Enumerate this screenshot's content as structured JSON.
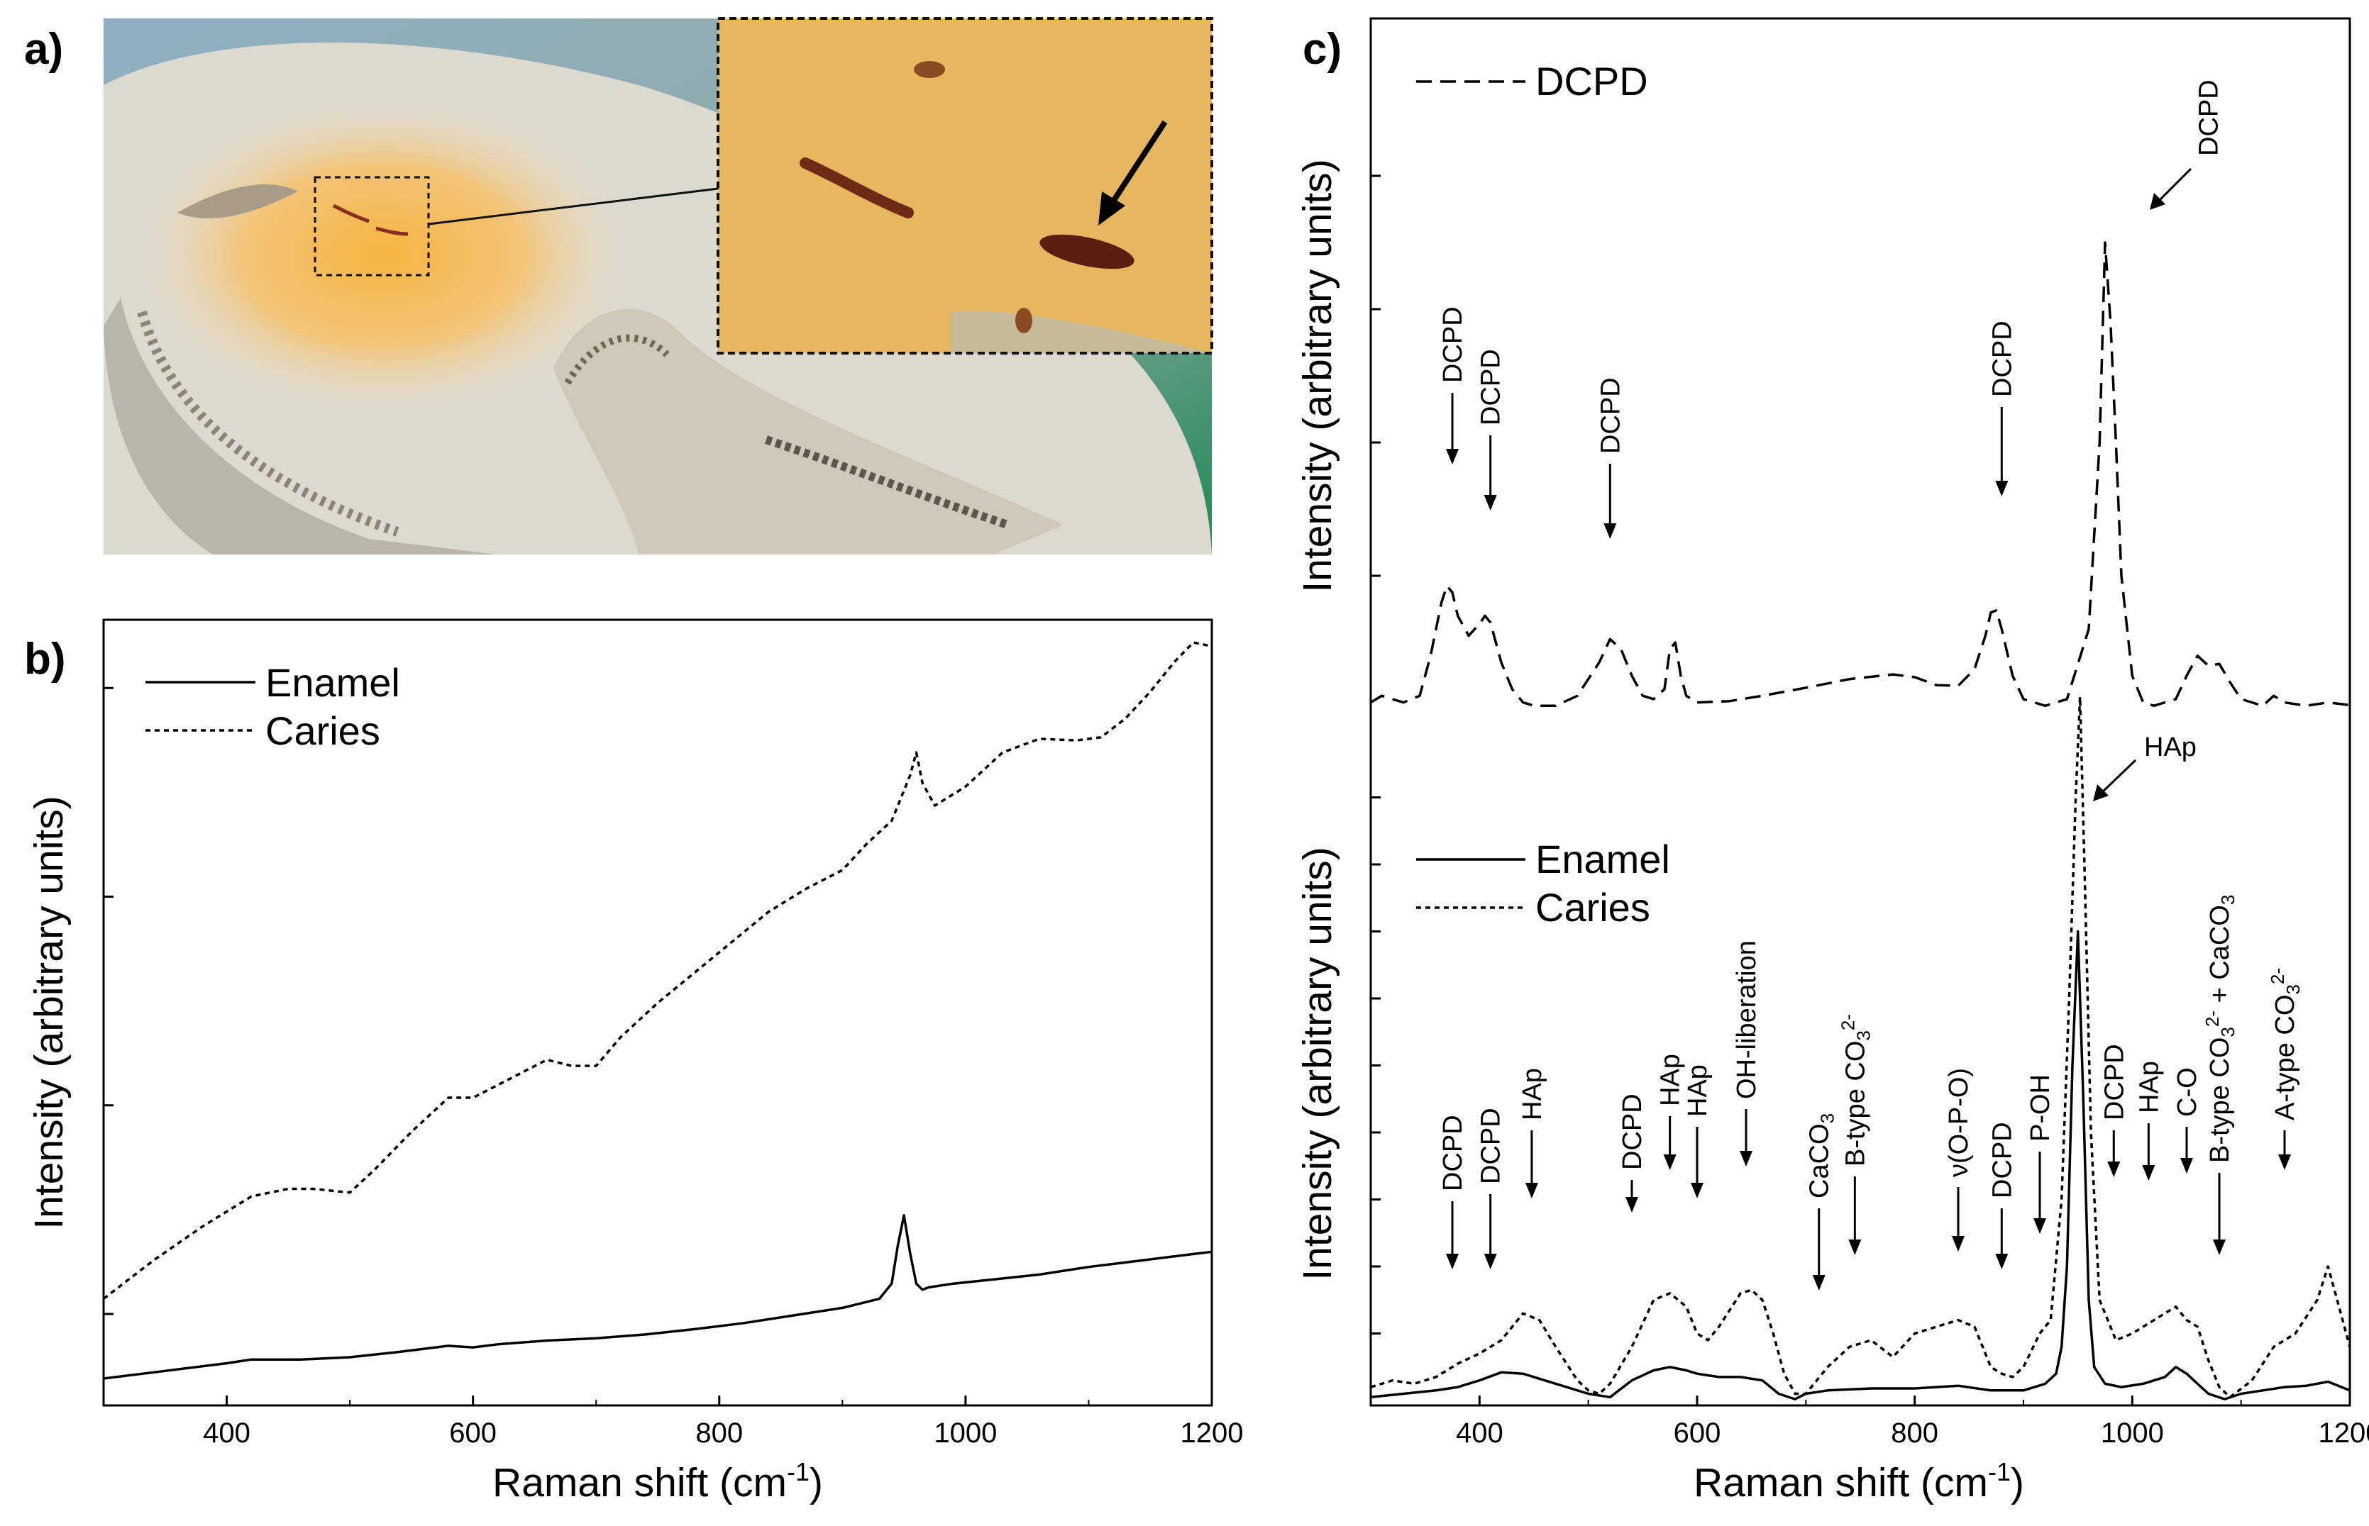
{
  "figure": {
    "panel_labels": [
      "a)",
      "b)",
      "c)"
    ]
  },
  "photo": {
    "description_icon": "tooth-section-photo",
    "colors": {
      "enamel": "#d8d6cc",
      "caries": "#f2b44a",
      "dentin": "#c9c3b4",
      "inset": "#e6b25a",
      "background": "#7fa0b0"
    }
  },
  "chart_data": [
    {
      "type": "line",
      "panel": "b)",
      "xlabel": "Raman shift (cm",
      "xlabel_sup": "-1",
      "xlabel_close": ")",
      "ylabel": "Intensity (arbitrary units)",
      "xlim": [
        300,
        1200
      ],
      "ylim": [
        0,
        100
      ],
      "xticks": [
        400,
        600,
        800,
        1000,
        1200
      ],
      "yticks_values": [
        10,
        37.5,
        65,
        92.5
      ],
      "legend": [
        {
          "label": "Enamel",
          "style": "solid"
        },
        {
          "label": "Caries",
          "style": "dotted"
        }
      ],
      "series": [
        {
          "name": "Enamel",
          "style": "solid",
          "x": [
            300,
            350,
            400,
            420,
            460,
            500,
            540,
            580,
            600,
            620,
            660,
            700,
            740,
            780,
            820,
            860,
            900,
            930,
            940,
            945,
            950,
            955,
            960,
            965,
            970,
            990,
            1020,
            1060,
            1100,
            1140,
            1180,
            1200
          ],
          "y": [
            1.5,
            2.5,
            3.5,
            4,
            4,
            4.3,
            5,
            5.8,
            5.6,
            6,
            6.5,
            6.8,
            7.3,
            8,
            8.8,
            9.8,
            10.8,
            12,
            14,
            19,
            23,
            18,
            14,
            13.2,
            13.5,
            14,
            14.5,
            15.2,
            16.2,
            17,
            17.8,
            18.2
          ]
        },
        {
          "name": "Caries",
          "style": "dotted",
          "x": [
            300,
            340,
            380,
            420,
            450,
            470,
            500,
            520,
            550,
            580,
            600,
            630,
            660,
            680,
            700,
            720,
            750,
            780,
            810,
            840,
            870,
            900,
            920,
            940,
            955,
            960,
            965,
            975,
            985,
            1000,
            1030,
            1060,
            1090,
            1110,
            1130,
            1150,
            1170,
            1185,
            1200
          ],
          "y": [
            12,
            17,
            21.5,
            25.5,
            26.5,
            26.5,
            26,
            29,
            34,
            38.5,
            38.5,
            41,
            43.5,
            42.7,
            42.7,
            46.5,
            51,
            55,
            59,
            63,
            66,
            68.5,
            72,
            75,
            81,
            84,
            80,
            77,
            78,
            79.5,
            84,
            85.8,
            85.6,
            86,
            88.5,
            92,
            96,
            98.5,
            98
          ]
        }
      ]
    },
    {
      "type": "line",
      "panel": "c) top",
      "ylabel": "Intensity (arbitrary units)",
      "xlim": [
        300,
        1200
      ],
      "ylim": [
        0,
        100
      ],
      "yticks_values": [
        20,
        40,
        60,
        80
      ],
      "legend": [
        {
          "label": "DCPD",
          "style": "dashed"
        }
      ],
      "annotations": [
        {
          "label": "DCPD",
          "x": 375
        },
        {
          "label": "DCPD",
          "x": 410
        },
        {
          "label": "DCPD",
          "x": 520
        },
        {
          "label": "DCPD",
          "x": 880
        },
        {
          "label": "DCPD",
          "x": 1000
        }
      ],
      "series": [
        {
          "name": "DCPD",
          "style": "dashed",
          "x": [
            300,
            310,
            320,
            330,
            345,
            355,
            365,
            370,
            375,
            380,
            390,
            400,
            405,
            410,
            420,
            430,
            440,
            450,
            470,
            490,
            510,
            520,
            530,
            540,
            550,
            560,
            570,
            575,
            580,
            585,
            590,
            600,
            630,
            660,
            700,
            740,
            780,
            800,
            820,
            840,
            855,
            865,
            870,
            875,
            880,
            890,
            900,
            920,
            940,
            960,
            970,
            975,
            980,
            985,
            990,
            1000,
            1010,
            1020,
            1040,
            1050,
            1060,
            1070,
            1080,
            1090,
            1100,
            1120,
            1130,
            1140,
            1160,
            1180,
            1200
          ],
          "y": [
            1,
            2,
            1.5,
            1,
            2,
            8,
            16,
            18.5,
            17.5,
            14,
            11,
            12.8,
            14,
            13,
            7,
            3,
            1,
            0.5,
            0.5,
            2,
            7,
            10.5,
            9,
            5,
            2,
            1.5,
            3,
            9,
            10,
            5,
            2,
            1,
            1.2,
            2,
            3.2,
            4.5,
            5.2,
            4.8,
            3.6,
            3.5,
            6,
            11,
            14.5,
            14.8,
            12,
            5,
            1.5,
            0.5,
            1.5,
            12,
            40,
            70,
            58,
            40,
            20,
            5,
            1,
            0.5,
            1.5,
            5,
            8,
            6.5,
            6.8,
            4,
            1.5,
            0.5,
            2,
            1,
            0.5,
            1,
            0.6
          ]
        }
      ]
    },
    {
      "type": "line",
      "panel": "c) bottom",
      "xlabel": "Raman shift (cm",
      "xlabel_sup": "-1",
      "xlabel_close": ")",
      "ylabel": "Intensity (arbitrary units)",
      "xlim": [
        300,
        1200
      ],
      "ylim": [
        0,
        100
      ],
      "xticks": [
        400,
        600,
        800,
        1000,
        1200
      ],
      "yticks_values": [
        10,
        20,
        30,
        40,
        50,
        60,
        70,
        80,
        90
      ],
      "legend": [
        {
          "label": "Enamel",
          "style": "solid"
        },
        {
          "label": "Caries",
          "style": "dotted"
        }
      ],
      "annotations": [
        {
          "label": "DCPD",
          "x": 375,
          "sub": ""
        },
        {
          "label": "DCPD",
          "x": 410,
          "sub": ""
        },
        {
          "label": "HAp",
          "x": 448,
          "sub": ""
        },
        {
          "label": "DCPD",
          "x": 540,
          "sub": ""
        },
        {
          "label": "HAp",
          "x": 575,
          "sub": ""
        },
        {
          "label": "HAp",
          "x": 600,
          "sub": ""
        },
        {
          "label": "OH-liberation",
          "x": 645,
          "sub": ""
        },
        {
          "label": "CaCO",
          "x": 712,
          "sub": "3"
        },
        {
          "label": "B-type CO",
          "x": 745,
          "sub": "3",
          "sup": "2-"
        },
        {
          "label": "ν(O-P-O)",
          "x": 840,
          "sub": ""
        },
        {
          "label": "DCPD",
          "x": 880,
          "sub": ""
        },
        {
          "label": "P-OH",
          "x": 915,
          "sub": ""
        },
        {
          "label": "DCPD",
          "x": 983,
          "sub": ""
        },
        {
          "label": "HAp",
          "x": 1015,
          "sub": ""
        },
        {
          "label": "C-O",
          "x": 1050,
          "sub": ""
        },
        {
          "label": "B-type CO",
          "x": 1080,
          "sub": "3",
          "sup": "2-",
          "extra": " + CaCO",
          "extra_sub": "3"
        },
        {
          "label": "A-type CO",
          "x": 1140,
          "sub": "3",
          "sup": "2-"
        },
        {
          "label": "HAp",
          "x": 960,
          "sub": ""
        }
      ],
      "series": [
        {
          "name": "Enamel",
          "style": "solid",
          "x": [
            300,
            330,
            360,
            380,
            400,
            420,
            440,
            460,
            480,
            500,
            520,
            540,
            560,
            575,
            590,
            600,
            620,
            640,
            660,
            675,
            690,
            700,
            720,
            760,
            800,
            840,
            870,
            900,
            920,
            930,
            935,
            940,
            945,
            950,
            955,
            960,
            965,
            975,
            990,
            1010,
            1030,
            1040,
            1050,
            1060,
            1070,
            1085,
            1100,
            1120,
            1140,
            1160,
            1180,
            1200
          ],
          "y": [
            0.5,
            1,
            1.5,
            2,
            3,
            4.2,
            4,
            3,
            2,
            1,
            0.5,
            3,
            4.5,
            5,
            4.5,
            4,
            3.5,
            3.5,
            3,
            1,
            0.2,
            1,
            1.5,
            1.8,
            1.8,
            2.2,
            1.5,
            1.5,
            2.5,
            4,
            8,
            20,
            50,
            70,
            45,
            15,
            5,
            2.5,
            2,
            2.5,
            3.5,
            5,
            4,
            2.5,
            1,
            0.2,
            1,
            1.5,
            2,
            2.2,
            2.8,
            1.5
          ]
        },
        {
          "name": "Caries",
          "style": "dotted",
          "x": [
            300,
            320,
            340,
            360,
            380,
            400,
            420,
            440,
            455,
            470,
            490,
            500,
            510,
            520,
            540,
            560,
            575,
            590,
            600,
            610,
            620,
            640,
            650,
            660,
            670,
            680,
            690,
            700,
            720,
            740,
            760,
            780,
            800,
            820,
            840,
            855,
            870,
            880,
            890,
            900,
            915,
            925,
            935,
            942,
            948,
            952,
            956,
            962,
            970,
            985,
            1000,
            1020,
            1040,
            1050,
            1060,
            1070,
            1080,
            1090,
            1110,
            1130,
            1150,
            1170,
            1180,
            1190,
            1200
          ],
          "y": [
            2,
            3,
            2.5,
            3.5,
            5.5,
            7,
            9,
            13,
            12,
            8,
            3,
            1.5,
            1,
            2.5,
            8,
            15,
            16,
            14,
            10,
            9,
            11,
            16,
            16.5,
            15,
            10,
            4,
            1,
            1,
            5,
            8,
            9,
            6.5,
            10,
            11,
            12,
            11,
            5,
            4,
            3.5,
            5,
            10,
            12,
            30,
            60,
            90,
            105,
            80,
            40,
            15,
            9,
            10,
            12,
            14,
            12,
            11,
            6,
            2,
            0.5,
            3,
            8,
            10,
            15,
            20,
            14,
            8
          ]
        }
      ]
    }
  ]
}
